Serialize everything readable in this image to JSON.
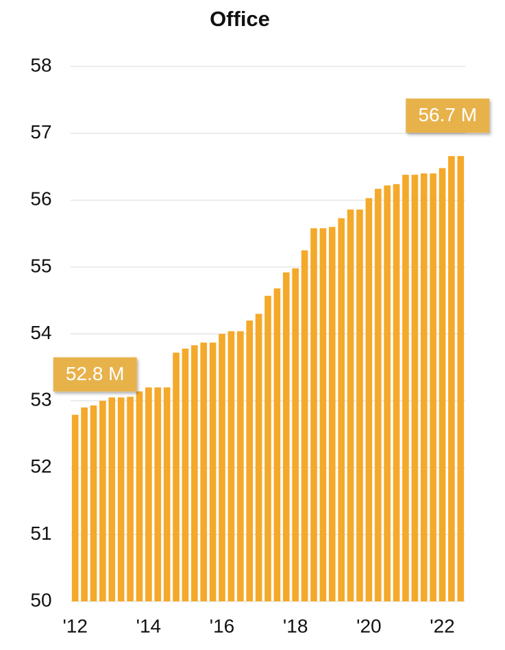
{
  "chart_data": {
    "type": "bar",
    "title": "Office",
    "categories": [
      "'12",
      null,
      null,
      null,
      null,
      null,
      null,
      null,
      "'14",
      null,
      null,
      null,
      null,
      null,
      null,
      null,
      "'16",
      null,
      null,
      null,
      null,
      null,
      null,
      null,
      "'18",
      null,
      null,
      null,
      null,
      null,
      null,
      null,
      "'20",
      null,
      null,
      null,
      null,
      null,
      null,
      null,
      "'22",
      null,
      null
    ],
    "values": [
      52.79,
      52.9,
      52.93,
      53.0,
      53.05,
      53.05,
      53.06,
      53.14,
      53.2,
      53.2,
      53.2,
      53.72,
      53.78,
      53.83,
      53.87,
      53.87,
      54.0,
      54.04,
      54.04,
      54.2,
      54.3,
      54.57,
      54.68,
      54.92,
      54.98,
      55.25,
      55.58,
      55.58,
      55.6,
      55.73,
      55.86,
      55.86,
      56.03,
      56.17,
      56.22,
      56.24,
      56.38,
      56.38,
      56.4,
      56.4,
      56.48,
      56.66,
      56.66
    ],
    "value_labels": [
      "52.8 M",
      null,
      null,
      null,
      null,
      null,
      null,
      null,
      null,
      null,
      null,
      null,
      null,
      null,
      null,
      null,
      null,
      null,
      null,
      null,
      null,
      null,
      null,
      null,
      null,
      null,
      null,
      null,
      null,
      null,
      null,
      null,
      null,
      null,
      null,
      null,
      null,
      null,
      null,
      null,
      null,
      null,
      "56.7 M"
    ],
    "color": "#f4a92a",
    "ylim": [
      50,
      58
    ],
    "yticks": [
      50,
      51,
      52,
      53,
      54,
      55,
      56,
      57,
      58
    ],
    "grid": true
  }
}
